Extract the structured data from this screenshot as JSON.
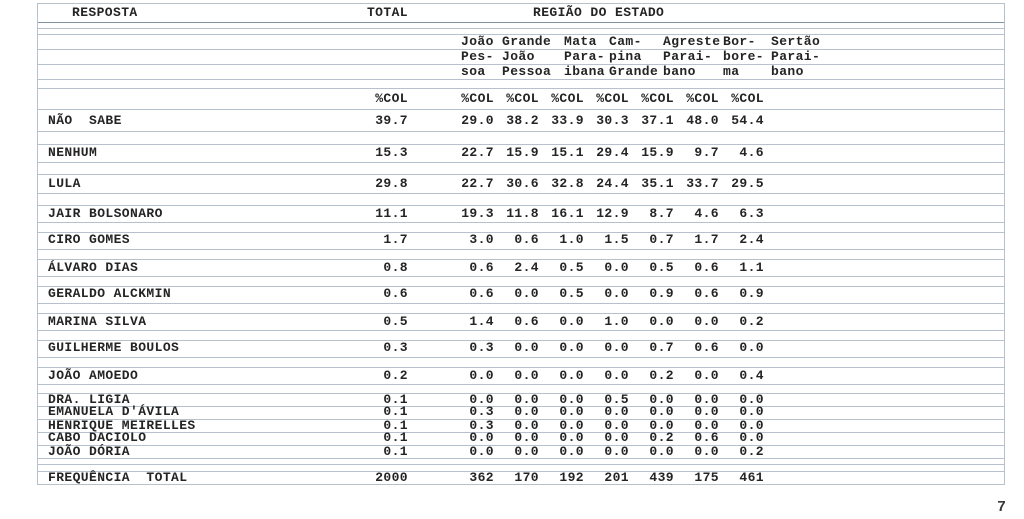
{
  "page_number": "7",
  "colors": {
    "text_color": "#242424",
    "grid_line_color": "#b7c1cd",
    "header_line_color": "#8094a6",
    "page_background": "#ffffff"
  },
  "table": {
    "col_headers": {
      "resposta": "RESPOSTA",
      "total": "TOTAL",
      "regiao": "REGIÃO DO ESTADO",
      "pct_label": "%COL",
      "regions": [
        {
          "name": "João Pessoa",
          "lines": [
            "João",
            "Pes-",
            "soa"
          ]
        },
        {
          "name": "Grande João Pessoa",
          "lines": [
            "Grande",
            "João",
            "Pessoa"
          ]
        },
        {
          "name": "Mata Paraibana",
          "lines": [
            "Mata",
            "Para-",
            "ibana"
          ]
        },
        {
          "name": "Campina Grande",
          "lines": [
            "Cam-",
            "pina",
            "Grande"
          ]
        },
        {
          "name": "Agreste Paraibano",
          "lines": [
            "Agreste",
            "Parai-",
            "bano"
          ]
        },
        {
          "name": "Borborema",
          "lines": [
            "Bor-",
            "bore-",
            "ma"
          ]
        },
        {
          "name": "Sertão Paraibano",
          "lines": [
            "Sertão",
            "Parai-",
            "bano"
          ]
        }
      ]
    },
    "rows": [
      {
        "label": "NÃO  SABE",
        "total": "39.7",
        "values": [
          "29.0",
          "38.2",
          "33.9",
          "30.3",
          "37.1",
          "48.0",
          "54.4"
        ]
      },
      {
        "label": "NENHUM",
        "total": "15.3",
        "values": [
          "22.7",
          "15.9",
          "15.1",
          "29.4",
          "15.9",
          "9.7",
          "4.6"
        ]
      },
      {
        "label": "LULA",
        "total": "29.8",
        "values": [
          "22.7",
          "30.6",
          "32.8",
          "24.4",
          "35.1",
          "33.7",
          "29.5"
        ]
      },
      {
        "label": "JAIR BOLSONARO",
        "total": "11.1",
        "values": [
          "19.3",
          "11.8",
          "16.1",
          "12.9",
          "8.7",
          "4.6",
          "6.3"
        ]
      },
      {
        "label": "CIRO GOMES",
        "total": "1.7",
        "values": [
          "3.0",
          "0.6",
          "1.0",
          "1.5",
          "0.7",
          "1.7",
          "2.4"
        ]
      },
      {
        "label": "ÁLVARO DIAS",
        "total": "0.8",
        "values": [
          "0.6",
          "2.4",
          "0.5",
          "0.0",
          "0.5",
          "0.6",
          "1.1"
        ]
      },
      {
        "label": "GERALDO ALCKMIN",
        "total": "0.6",
        "values": [
          "0.6",
          "0.0",
          "0.5",
          "0.0",
          "0.9",
          "0.6",
          "0.9"
        ]
      },
      {
        "label": "MARINA SILVA",
        "total": "0.5",
        "values": [
          "1.4",
          "0.6",
          "0.0",
          "1.0",
          "0.0",
          "0.0",
          "0.2"
        ]
      },
      {
        "label": "GUILHERME BOULOS",
        "total": "0.3",
        "values": [
          "0.3",
          "0.0",
          "0.0",
          "0.0",
          "0.7",
          "0.6",
          "0.0"
        ]
      },
      {
        "label": "JOÃO AMOEDO",
        "total": "0.2",
        "values": [
          "0.0",
          "0.0",
          "0.0",
          "0.0",
          "0.2",
          "0.0",
          "0.4"
        ]
      },
      {
        "label": "DRA. LIGIA",
        "total": "0.1",
        "values": [
          "0.0",
          "0.0",
          "0.0",
          "0.5",
          "0.0",
          "0.0",
          "0.0"
        ]
      },
      {
        "label": "EMANUELA D'ÁVILA",
        "total": "0.1",
        "values": [
          "0.3",
          "0.0",
          "0.0",
          "0.0",
          "0.0",
          "0.0",
          "0.0"
        ]
      },
      {
        "label": "HENRIQUE MEIRELLES",
        "total": "0.1",
        "values": [
          "0.3",
          "0.0",
          "0.0",
          "0.0",
          "0.0",
          "0.0",
          "0.0"
        ]
      },
      {
        "label": "CABO DACIOLO",
        "total": "0.1",
        "values": [
          "0.0",
          "0.0",
          "0.0",
          "0.0",
          "0.2",
          "0.6",
          "0.0"
        ]
      },
      {
        "label": "JOÃO DÓRIA",
        "total": "0.1",
        "values": [
          "0.0",
          "0.0",
          "0.0",
          "0.0",
          "0.0",
          "0.0",
          "0.2"
        ]
      },
      {
        "label": "FREQUÊNCIA  TOTAL",
        "total": "2000",
        "values": [
          "362",
          "170",
          "192",
          "201",
          "439",
          "175",
          "461"
        ]
      }
    ]
  }
}
